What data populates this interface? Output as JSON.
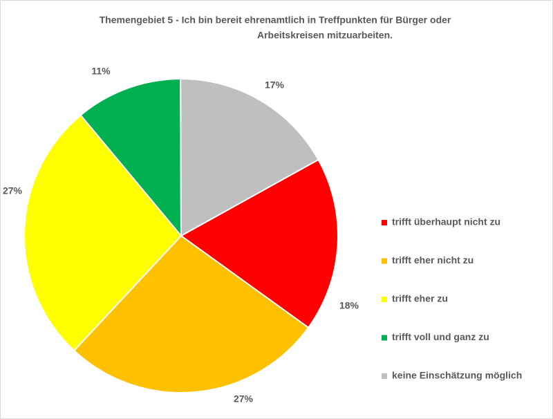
{
  "chart_data": {
    "type": "pie",
    "title": [
      "Themengebiet 5   -   Ich bin bereit ehrenamtlich in Treffpunkten für  Bürger oder",
      "Arbeitskreisen mitzuarbeiten."
    ],
    "categories": [
      "trifft überhaupt nicht zu",
      "trifft eher nicht zu",
      "trifft eher zu",
      "trifft voll und ganz zu",
      "keine Einschätzung möglich"
    ],
    "values": [
      18,
      27,
      27,
      11,
      17
    ],
    "value_labels": [
      "18%",
      "27%",
      "27%",
      "11%",
      "17%"
    ],
    "colors": [
      "#ff0000",
      "#ffc000",
      "#ffff00",
      "#00b050",
      "#bfbfbf"
    ],
    "first_slice_angle": 61,
    "legend": "right"
  }
}
